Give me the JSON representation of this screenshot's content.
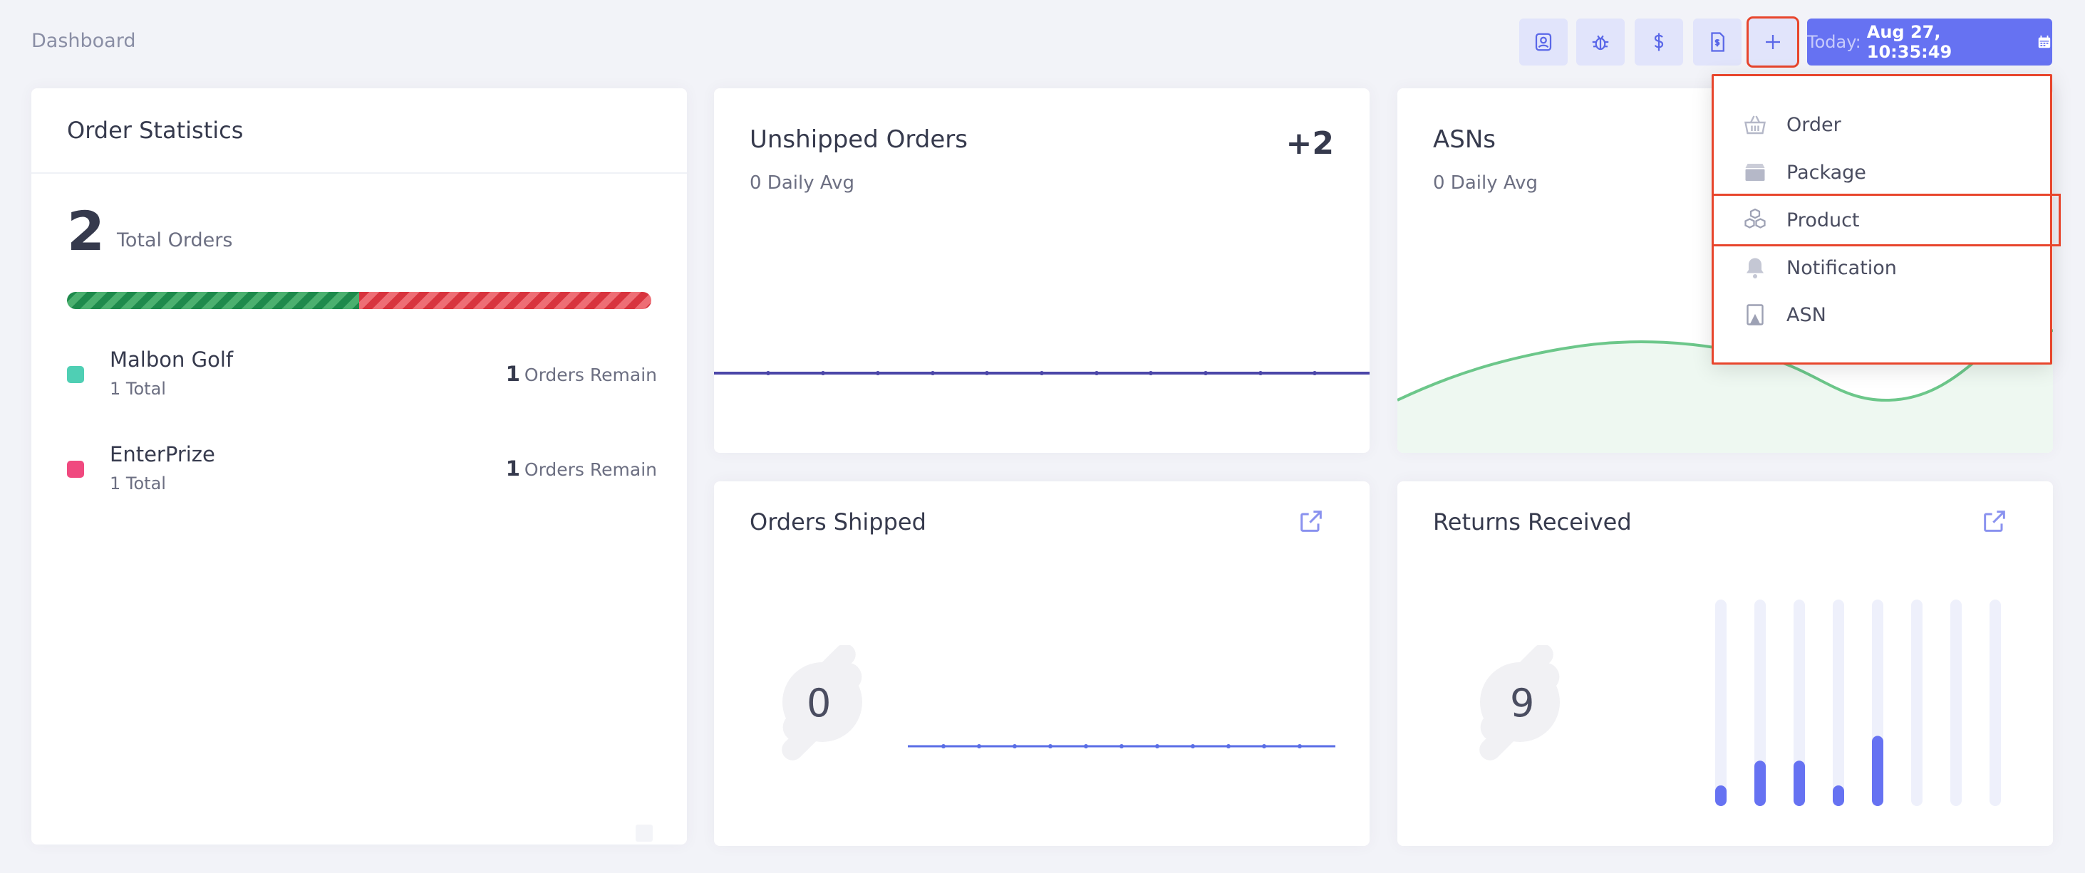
{
  "header": {
    "title": "Dashboard",
    "date_label": "Today:",
    "date_value": "Aug 27, 10:35:49",
    "toolbar_icons": [
      "user-icon",
      "bug-icon",
      "dollar-icon",
      "invoice-icon",
      "plus-icon",
      "calendar-icon"
    ]
  },
  "order_statistics": {
    "title": "Order Statistics",
    "total": "2",
    "total_label": "Total Orders",
    "progress": [
      {
        "value": 0.5,
        "color": "#3a9b5f"
      },
      {
        "value": 0.5,
        "color": "#e2535b"
      }
    ],
    "clients": [
      {
        "name": "Malbon Golf",
        "total": "1 Total",
        "remain_count": "1",
        "remain_label": "Orders Remain",
        "color": "#4fcfb4"
      },
      {
        "name": "EnterPrize",
        "total": "1 Total",
        "remain_count": "1",
        "remain_label": "Orders Remain",
        "color": "#f0497f"
      }
    ]
  },
  "unshipped_orders": {
    "title": "Unshipped Orders",
    "subtitle": "0 Daily Avg",
    "delta": "+2",
    "line_color": "#4b46a8"
  },
  "asns": {
    "title": "ASNs",
    "subtitle": "0 Daily Avg",
    "line_color": "#6cc78a"
  },
  "orders_shipped": {
    "title": "Orders Shipped",
    "value": "0",
    "line_color": "#5a6ee6"
  },
  "returns_received": {
    "title": "Returns Received",
    "value": "9",
    "bar_color": "#6672f2",
    "bar_track_color": "#eef0fb",
    "bars": [
      0.1,
      0.22,
      0.22,
      0.1,
      0.34,
      0,
      0,
      0
    ]
  },
  "add_menu": {
    "items": [
      {
        "label": "Order",
        "icon": "basket-icon"
      },
      {
        "label": "Package",
        "icon": "box-icon"
      },
      {
        "label": "Product",
        "icon": "cubes-icon"
      },
      {
        "label": "Notification",
        "icon": "bell-icon"
      },
      {
        "label": "ASN",
        "icon": "asn-icon"
      }
    ]
  }
}
